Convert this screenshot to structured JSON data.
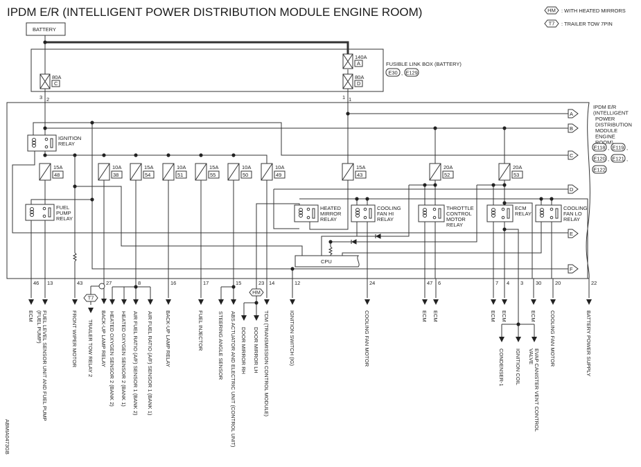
{
  "title": "IPDM E/R (INTELLIGENT POWER DISTRIBUTION MODULE ENGINE ROOM)",
  "legend": [
    {
      "code": "HM",
      "text": ": WITH HEATED MIRRORS"
    },
    {
      "code": "T7",
      "text": ": TRAILER TOW 7PIN"
    }
  ],
  "battery": "BATTERY",
  "fusible_link": {
    "label": "FUSIBLE LINK BOX (BATTERY)",
    "connectors": [
      "E30",
      "E129"
    ],
    "fuses": [
      {
        "amp": "80A",
        "id": "C"
      },
      {
        "amp": "140A",
        "id": "A"
      },
      {
        "amp": "80A",
        "id": "D"
      }
    ],
    "pins": [
      "3",
      "2",
      "1",
      "1"
    ]
  },
  "ipdm": {
    "label_lines": [
      "IPDM E/R",
      "(INTELLIGENT",
      "POWER",
      "DISTRIBUTION",
      "MODULE",
      "ENGINE",
      "ROOM)"
    ],
    "connectors": [
      "E118",
      "E119",
      "E120",
      "E121",
      "E122"
    ],
    "cpu": "CPU",
    "bus_letters": [
      "A",
      "B",
      "C",
      "D",
      "E",
      "F"
    ]
  },
  "fuses": [
    {
      "amp": "15A",
      "num": "48"
    },
    {
      "amp": "10A",
      "num": "38"
    },
    {
      "amp": "15A",
      "num": "54"
    },
    {
      "amp": "10A",
      "num": "51"
    },
    {
      "amp": "15A",
      "num": "55"
    },
    {
      "amp": "10A",
      "num": "50"
    },
    {
      "amp": "10A",
      "num": "49"
    },
    {
      "amp": "15A",
      "num": "43"
    },
    {
      "amp": "20A",
      "num": "52"
    },
    {
      "amp": "20A",
      "num": "53"
    }
  ],
  "relays": [
    {
      "name": [
        "IGNITION",
        "RELAY"
      ]
    },
    {
      "name": [
        "FUEL",
        "PUMP",
        "RELAY"
      ]
    },
    {
      "name": [
        "HEATED",
        "MIRROR",
        "RELAY"
      ]
    },
    {
      "name": [
        "COOLING",
        "FAN HI",
        "RELAY"
      ]
    },
    {
      "name": [
        "THROTTLE",
        "CONTROL",
        "MOTOR",
        "RELAY"
      ]
    },
    {
      "name": [
        "ECM",
        "RELAY"
      ]
    },
    {
      "name": [
        "COOLING",
        "FAN LO",
        "RELAY"
      ]
    }
  ],
  "outputs": [
    {
      "pin": "46",
      "targets": [
        {
          "label": [
            "ECM"
          ]
        }
      ]
    },
    {
      "pin": "13",
      "targets": [
        {
          "label": [
            "FUEL LEVEL SENSOR UNIT AND FUEL PUMP",
            "(FUEL PUMP)"
          ]
        }
      ]
    },
    {
      "pin": "43",
      "targets": [
        {
          "label": [
            "FRONT WIPER MOTOR"
          ]
        }
      ]
    },
    {
      "pin": "27",
      "targets": [
        {
          "label": [
            "TRAILER TOW RELAY 2"
          ],
          "condition": "T7"
        },
        {
          "label": [
            "BACK-UP LAMP RELAY"
          ]
        }
      ]
    },
    {
      "pin": "8",
      "targets": [
        {
          "label": [
            "HEATED OXYGEN SENSOR 2 (BANK 2)"
          ]
        },
        {
          "label": [
            "HEATED OXYGEN SENSOR 2 (BANK 1)"
          ]
        },
        {
          "label": [
            "AIR FUEL RATIO (A/F) SENSOR 1 (BANK 2)"
          ]
        },
        {
          "label": [
            "AIR FUEL RATIO (A/F) SENSOR 1 (BANK 1)"
          ]
        }
      ]
    },
    {
      "pin": "16",
      "targets": [
        {
          "label": [
            "BACK-UP LAMP RELAY"
          ]
        }
      ]
    },
    {
      "pin": "17",
      "targets": [
        {
          "label": [
            "FUEL INJECTOR"
          ]
        }
      ]
    },
    {
      "pin": "15",
      "targets": [
        {
          "label": [
            "STEERING ANGLE SENSOR"
          ]
        },
        {
          "label": [
            "ABS ACTUATOR AND ELECTRIC UNIT (CONTROL UNIT)"
          ]
        }
      ]
    },
    {
      "pin": "23",
      "condition": "HM",
      "targets": [
        {
          "label": [
            "DOOR MIRROR RH"
          ]
        },
        {
          "label": [
            "DOOR MIRROR LH"
          ]
        }
      ]
    },
    {
      "pin": "14",
      "targets": [
        {
          "label": [
            "TCM (TRANSMISSION CONTROL MODULE)"
          ]
        }
      ]
    },
    {
      "pin": "12",
      "targets": [
        {
          "label": [
            "IGNITION SWITCH (IG)"
          ]
        }
      ]
    },
    {
      "pin": "24",
      "targets": [
        {
          "label": [
            "COOLING FAN MOTOR"
          ]
        }
      ]
    },
    {
      "pin": "47",
      "targets": [
        {
          "label": [
            "ECM"
          ]
        }
      ]
    },
    {
      "pin": "6",
      "targets": [
        {
          "label": [
            "ECM"
          ]
        }
      ]
    },
    {
      "pin": "7",
      "targets": [
        {
          "label": [
            "ECM"
          ]
        }
      ]
    },
    {
      "pin": "4",
      "targets": [
        {
          "label": [
            "ECM"
          ]
        }
      ]
    },
    {
      "pin": "3",
      "targets": [
        {
          "label": [
            "CONDENSER-1"
          ]
        },
        {
          "label": [
            "IGNITION COIL"
          ]
        },
        {
          "label": [
            "EVAP CANISTER VENT CONTROL",
            "VALVE"
          ]
        }
      ]
    },
    {
      "pin": "30",
      "targets": [
        {
          "label": [
            "ECM"
          ]
        }
      ]
    },
    {
      "pin": "20",
      "targets": [
        {
          "label": [
            "COOLING FAN MOTOR"
          ]
        }
      ]
    },
    {
      "pin": "22",
      "targets": [
        {
          "label": [
            "BATTERY POWER SUPPLY"
          ]
        }
      ]
    }
  ],
  "diagram_id": "ABMIA0473GB"
}
